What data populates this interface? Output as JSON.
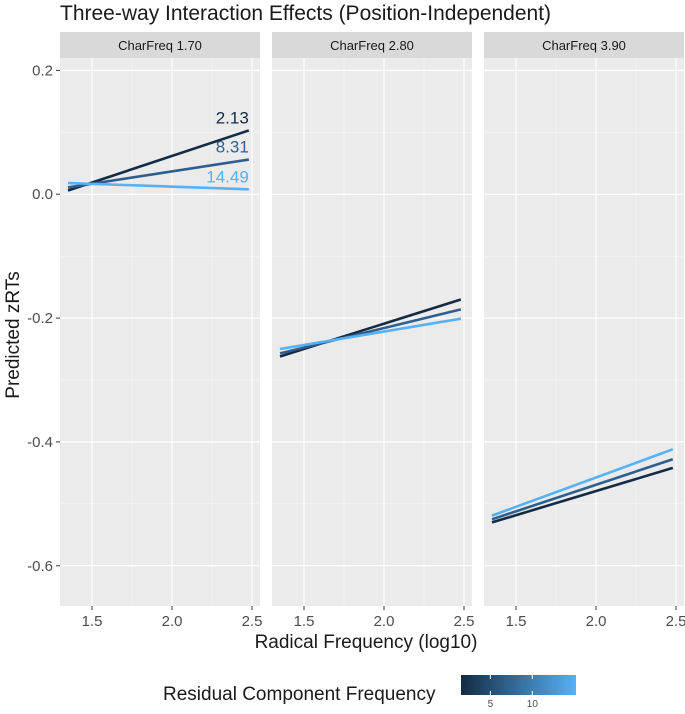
{
  "chart_data": {
    "type": "line",
    "title": "Three-way Interaction Effects (Position-Independent)",
    "xlabel": "Radical Frequency (log10)",
    "ylabel": "Predicted zRTs",
    "xlim": [
      1.3,
      2.55
    ],
    "ylim": [
      -0.665,
      0.22
    ],
    "xticks": [
      1.5,
      2.0,
      2.5
    ],
    "xtick_labels": [
      "1.5",
      "2.0",
      "2.5"
    ],
    "yticks": [
      0.2,
      0.0,
      -0.2,
      -0.4,
      -0.6
    ],
    "ytick_labels": [
      "0.2",
      "0.0",
      "-0.2",
      "-0.4",
      "-0.6"
    ],
    "colors": {
      "low": "#132b43",
      "mid": "#2f5f8f",
      "high": "#56b1f7"
    },
    "panels": [
      {
        "label": "CharFreq 1.70",
        "series": [
          {
            "name": "2.13",
            "color": "#132b43",
            "x": [
              1.35,
              2.48
            ],
            "y": [
              0.006,
              0.103
            ],
            "label": "2.13"
          },
          {
            "name": "8.31",
            "color": "#2f5f8f",
            "x": [
              1.35,
              2.48
            ],
            "y": [
              0.011,
              0.056
            ],
            "label": "8.31"
          },
          {
            "name": "14.49",
            "color": "#56b1f7",
            "x": [
              1.35,
              2.48
            ],
            "y": [
              0.018,
              0.008
            ],
            "label": "14.49"
          }
        ]
      },
      {
        "label": "CharFreq 2.80",
        "series": [
          {
            "name": "2.13",
            "color": "#132b43",
            "x": [
              1.35,
              2.48
            ],
            "y": [
              -0.262,
              -0.17
            ]
          },
          {
            "name": "8.31",
            "color": "#2f5f8f",
            "x": [
              1.35,
              2.48
            ],
            "y": [
              -0.257,
              -0.186
            ]
          },
          {
            "name": "14.49",
            "color": "#56b1f7",
            "x": [
              1.35,
              2.48
            ],
            "y": [
              -0.25,
              -0.201
            ]
          }
        ]
      },
      {
        "label": "CharFreq 3.90",
        "series": [
          {
            "name": "2.13",
            "color": "#132b43",
            "x": [
              1.35,
              2.48
            ],
            "y": [
              -0.53,
              -0.442
            ]
          },
          {
            "name": "8.31",
            "color": "#2f5f8f",
            "x": [
              1.35,
              2.48
            ],
            "y": [
              -0.525,
              -0.428
            ]
          },
          {
            "name": "14.49",
            "color": "#56b1f7",
            "x": [
              1.35,
              2.48
            ],
            "y": [
              -0.519,
              -0.412
            ]
          }
        ]
      }
    ],
    "legend": {
      "title": "Residual Component Frequency",
      "position": "bottom",
      "type": "colorbar",
      "range": [
        1.5,
        15.2
      ],
      "ticks": [
        5,
        10
      ],
      "tick_labels": [
        "5",
        "10"
      ],
      "low_color": "#132b43",
      "high_color": "#56b1f7"
    }
  }
}
